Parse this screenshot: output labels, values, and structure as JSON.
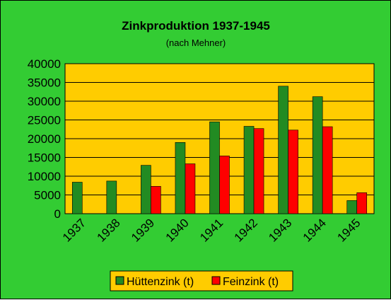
{
  "chart_data": {
    "type": "bar",
    "title": "Zinkproduktion 1937-1945",
    "subtitle": "(nach Mehner)",
    "categories": [
      "1937",
      "1938",
      "1939",
      "1940",
      "1941",
      "1942",
      "1943",
      "1944",
      "1945"
    ],
    "series": [
      {
        "name": "Hüttenzink (t)",
        "color": "#228b22",
        "values": [
          8400,
          8700,
          12900,
          19000,
          24500,
          23300,
          34000,
          31200,
          3500
        ]
      },
      {
        "name": "Feinzink (t)",
        "color": "#ff0000",
        "values": [
          null,
          null,
          7300,
          13300,
          15400,
          22700,
          22300,
          23200,
          5600
        ]
      }
    ],
    "ylim": [
      0,
      40000
    ],
    "yticks": [
      "0",
      "5000",
      "10000",
      "15000",
      "20000",
      "25000",
      "30000",
      "35000",
      "40000"
    ],
    "grid": true,
    "legend": "bottom",
    "colors": {
      "background": "#33cc33",
      "plot_area": "#ffcc00"
    }
  }
}
